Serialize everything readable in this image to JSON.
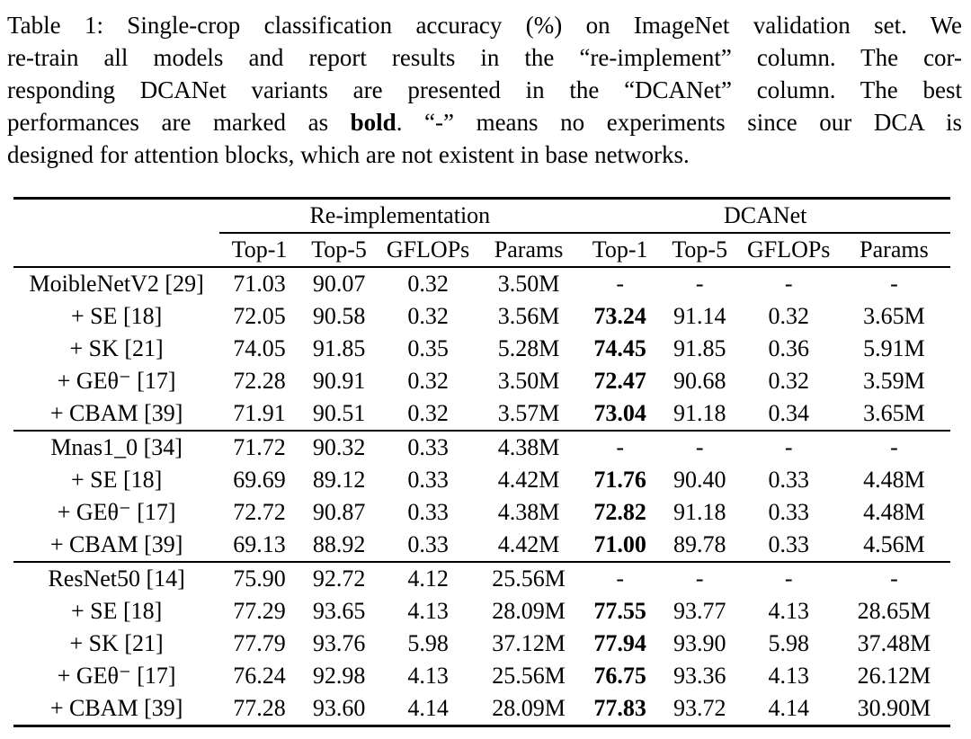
{
  "caption": {
    "line1": "Table 1: Single-crop classification accuracy (%) on ImageNet validation set. We",
    "line2": "re-train all models and report results in the “re-implement” column. The cor-",
    "line3": "responding DCANet variants are presented in the “DCANet” column. The best",
    "line4_pre": "performances are marked as ",
    "line4_bold": "bold",
    "line4_post": ". “-” means no experiments since our DCA is",
    "line5": "designed for attention blocks, which are not existent in base networks."
  },
  "table": {
    "group_headers": [
      {
        "label": "Re-implementation",
        "colspan": 4
      },
      {
        "label": "DCANet",
        "colspan": 4
      }
    ],
    "column_headers": [
      "Top-1",
      "Top-5",
      "GFLOPs",
      "Params",
      "Top-1",
      "Top-5",
      "GFLOPs",
      "Params"
    ],
    "groups": [
      {
        "rows": [
          {
            "name": "MoibleNetV2 [29]",
            "cells": [
              "71.03",
              "90.07",
              "0.32",
              "3.50M",
              "-",
              "-",
              "-",
              "-"
            ],
            "bold_cells": []
          },
          {
            "name": "+ SE [18]",
            "cells": [
              "72.05",
              "90.58",
              "0.32",
              "3.56M",
              "73.24",
              "91.14",
              "0.32",
              "3.65M"
            ],
            "bold_cells": [
              4
            ]
          },
          {
            "name": "+ SK [21]",
            "cells": [
              "74.05",
              "91.85",
              "0.35",
              "5.28M",
              "74.45",
              "91.85",
              "0.36",
              "5.91M"
            ],
            "bold_cells": [
              4
            ]
          },
          {
            "name": "+ GEθ⁻ [17]",
            "cells": [
              "72.28",
              "90.91",
              "0.32",
              "3.50M",
              "72.47",
              "90.68",
              "0.32",
              "3.59M"
            ],
            "bold_cells": [
              4
            ]
          },
          {
            "name": "+ CBAM [39]",
            "cells": [
              "71.91",
              "90.51",
              "0.32",
              "3.57M",
              "73.04",
              "91.18",
              "0.34",
              "3.65M"
            ],
            "bold_cells": [
              4
            ]
          }
        ]
      },
      {
        "rows": [
          {
            "name": "Mnas1_0 [34]",
            "cells": [
              "71.72",
              "90.32",
              "0.33",
              "4.38M",
              "-",
              "-",
              "-",
              "-"
            ],
            "bold_cells": []
          },
          {
            "name": "+ SE [18]",
            "cells": [
              "69.69",
              "89.12",
              "0.33",
              "4.42M",
              "71.76",
              "90.40",
              "0.33",
              "4.48M"
            ],
            "bold_cells": [
              4
            ]
          },
          {
            "name": "+ GEθ⁻ [17]",
            "cells": [
              "72.72",
              "90.87",
              "0.33",
              "4.38M",
              "72.82",
              "91.18",
              "0.33",
              "4.48M"
            ],
            "bold_cells": [
              4
            ]
          },
          {
            "name": "+ CBAM [39]",
            "cells": [
              "69.13",
              "88.92",
              "0.33",
              "4.42M",
              "71.00",
              "89.78",
              "0.33",
              "4.56M"
            ],
            "bold_cells": [
              4
            ]
          }
        ]
      },
      {
        "rows": [
          {
            "name": "ResNet50 [14]",
            "cells": [
              "75.90",
              "92.72",
              "4.12",
              "25.56M",
              "-",
              "-",
              "-",
              "-"
            ],
            "bold_cells": []
          },
          {
            "name": "+ SE [18]",
            "cells": [
              "77.29",
              "93.65",
              "4.13",
              "28.09M",
              "77.55",
              "93.77",
              "4.13",
              "28.65M"
            ],
            "bold_cells": [
              4
            ]
          },
          {
            "name": "+ SK [21]",
            "cells": [
              "77.79",
              "93.76",
              "5.98",
              "37.12M",
              "77.94",
              "93.90",
              "5.98",
              "37.48M"
            ],
            "bold_cells": [
              4
            ]
          },
          {
            "name": "+ GEθ⁻ [17]",
            "cells": [
              "76.24",
              "92.98",
              "4.13",
              "25.56M",
              "76.75",
              "93.36",
              "4.13",
              "26.12M"
            ],
            "bold_cells": [
              4
            ]
          },
          {
            "name": "+ CBAM [39]",
            "cells": [
              "77.28",
              "93.60",
              "4.14",
              "28.09M",
              "77.83",
              "93.72",
              "4.14",
              "30.90M"
            ],
            "bold_cells": [
              4
            ]
          }
        ]
      }
    ]
  }
}
